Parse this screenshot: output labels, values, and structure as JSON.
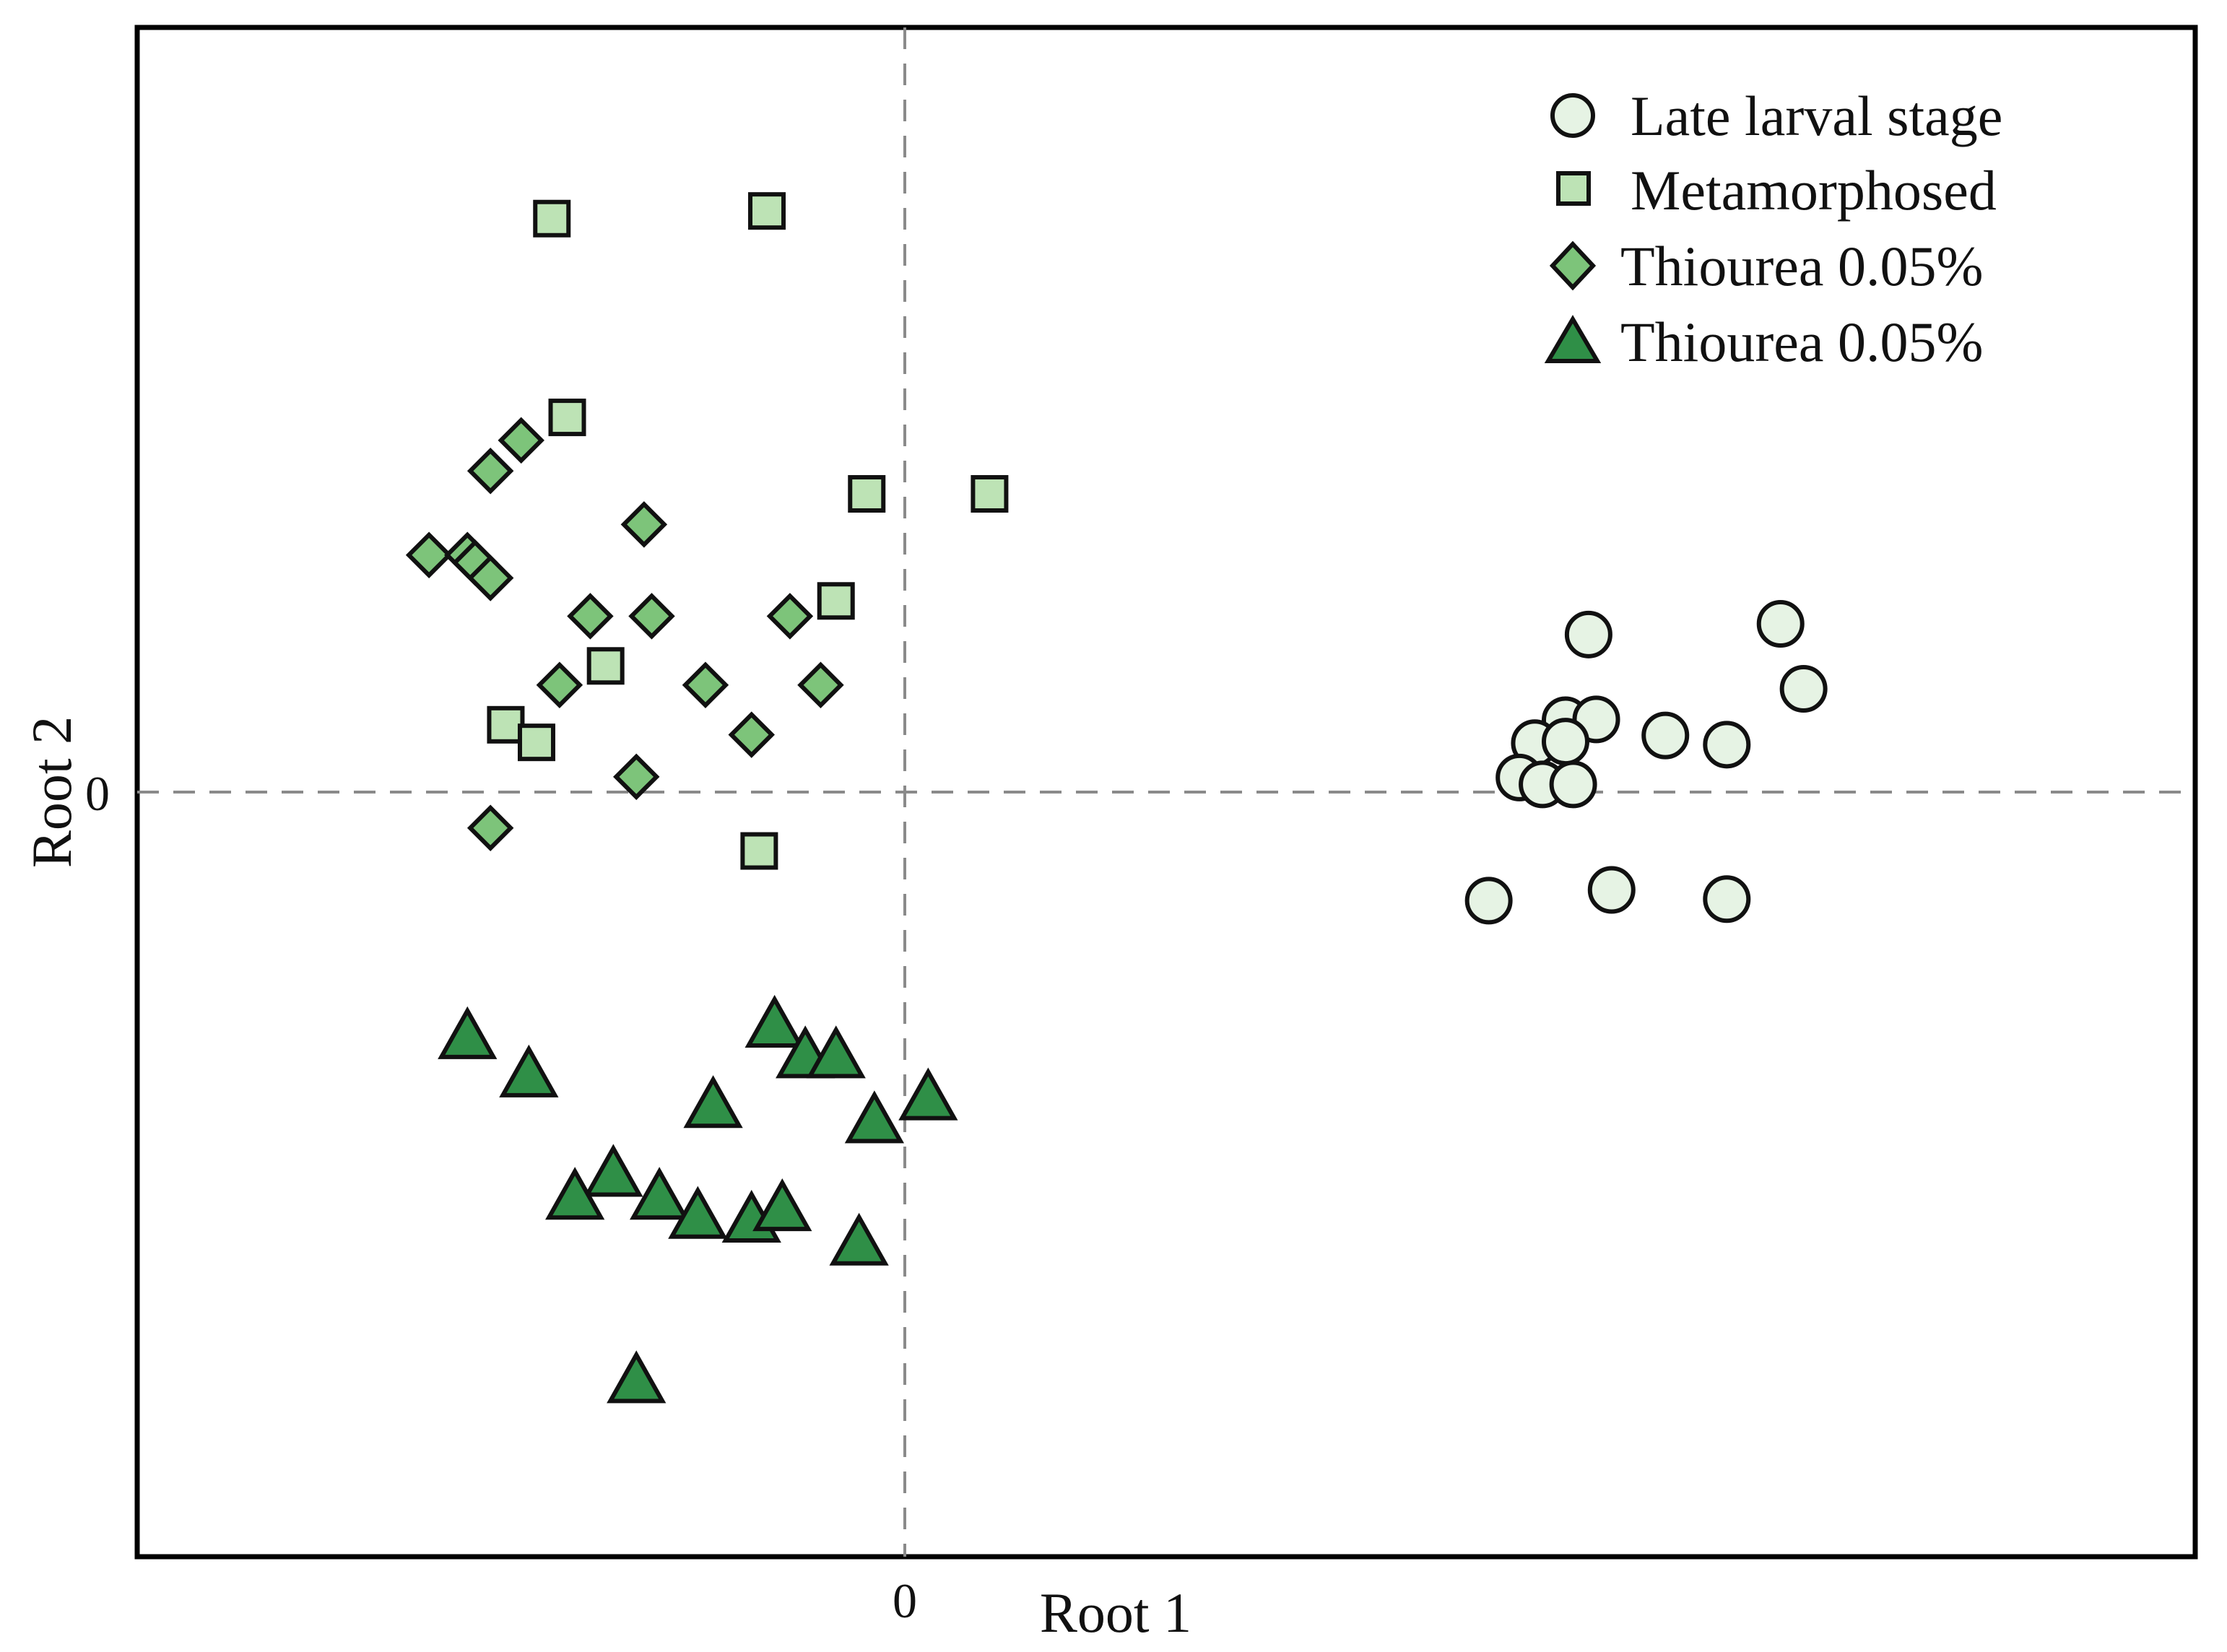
{
  "chart_data": {
    "type": "scatter",
    "title": "",
    "xlabel": "Root 1",
    "ylabel": "Root 2",
    "xlim": [
      -10,
      16.8
    ],
    "ylim": [
      -10,
      10
    ],
    "x_ticks": [
      "0"
    ],
    "y_ticks": [
      "0"
    ],
    "reference_lines": {
      "x": 0,
      "y": 0,
      "style": "dashed"
    },
    "legend_position": "top-right",
    "series": [
      {
        "name": "Late larval stage",
        "marker": "circle",
        "color": "#e6f3e4",
        "x": [
          8.9,
          11.4,
          11.7,
          8.6,
          9.0,
          8.2,
          8.6,
          9.9,
          10.7,
          8.0,
          8.3,
          8.7,
          7.6,
          9.2,
          10.7
        ],
        "y": [
          2.06,
          2.2,
          1.35,
          0.94,
          0.95,
          0.64,
          0.66,
          0.74,
          0.62,
          0.19,
          0.1,
          0.1,
          -1.42,
          -1.28,
          -1.4
        ]
      },
      {
        "name": "Metamorphosed",
        "marker": "square",
        "color": "#bde3b5",
        "x": [
          -4.6,
          -1.8,
          -4.4,
          -0.5,
          1.1,
          -0.9,
          -3.9,
          -5.2,
          -4.8,
          -1.9
        ],
        "y": [
          7.5,
          7.6,
          4.9,
          3.9,
          3.9,
          2.5,
          1.65,
          0.88,
          0.65,
          -0.77
        ]
      },
      {
        "name": "Thiourea 0.05%",
        "marker": "diamond",
        "color": "#7dc47a",
        "x": [
          -5.0,
          -5.4,
          -3.4,
          -6.2,
          -5.7,
          -5.6,
          -5.4,
          -4.1,
          -3.3,
          -1.5,
          -4.5,
          -2.6,
          -1.1,
          -2.0,
          -3.5,
          -5.4
        ],
        "y": [
          4.6,
          4.2,
          3.5,
          3.1,
          3.1,
          3.0,
          2.8,
          2.3,
          2.3,
          2.3,
          1.4,
          1.4,
          1.4,
          0.75,
          0.2,
          -0.47
        ]
      },
      {
        "name": "Thiourea 0.05%",
        "marker": "triangle",
        "color": "#2f8f47",
        "x": [
          -5.7,
          -4.9,
          -1.7,
          -1.3,
          -0.9,
          -2.5,
          -0.4,
          0.3,
          -3.8,
          -4.3,
          -3.2,
          -2.7,
          -2.0,
          -1.6,
          -0.6,
          -3.5
        ],
        "y": [
          -3.2,
          -3.7,
          -3.05,
          -3.45,
          -3.45,
          -4.1,
          -4.3,
          -4.0,
          -5.0,
          -5.3,
          -5.3,
          -5.55,
          -5.6,
          -5.45,
          -5.9,
          -7.7
        ]
      }
    ]
  }
}
